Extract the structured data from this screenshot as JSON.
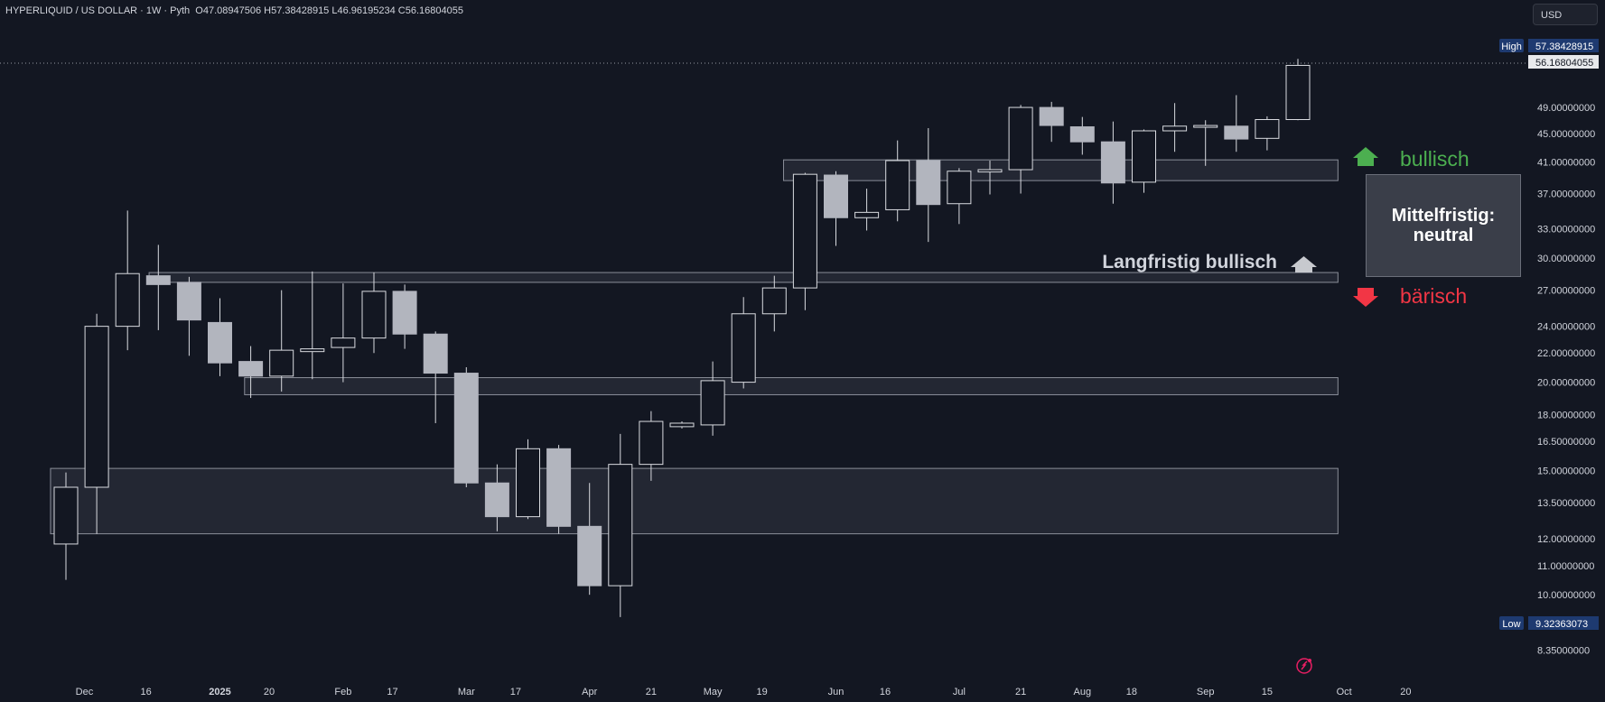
{
  "header": {
    "symbol": "HYPERLIQUID / US DOLLAR · 1W · Pyth",
    "ohlc": "O47.08947506  H57.38428915  L46.96195234  C56.16804055"
  },
  "currency_button": "USD",
  "annotations": {
    "bullish_label": "bullisch",
    "bearish_label": "bärisch",
    "neutral_line1": "Mittelfristig:",
    "neutral_line2": "neutral",
    "longterm_label": "Langfristig bullisch"
  },
  "colors": {
    "background": "#131722",
    "candle_down": "#b2b5be",
    "candle_up_body": "#131722",
    "candle_outline": "#d9dbe0",
    "zone_fill": "#2a2e39",
    "zone_border": "#8a8e99",
    "bullish": "#4caf50",
    "bearish": "#f23645",
    "axis_text": "#d1d4dc"
  },
  "chart_data": {
    "type": "candlestick",
    "timeframe": "1W",
    "y_scale": "log",
    "high_marker": {
      "label": "High",
      "value": "57.38428915"
    },
    "low_marker": {
      "label": "Low",
      "value": "9.32363073"
    },
    "last_price": "56.16804055",
    "y_tick_labels": [
      "49.00000000",
      "45.00000000",
      "41.00000000",
      "37.00000000",
      "33.00000000",
      "30.00000000",
      "27.00000000",
      "24.00000000",
      "22.00000000",
      "20.00000000",
      "18.00000000",
      "16.50000000",
      "15.00000000",
      "13.50000000",
      "12.00000000",
      "11.00000000",
      "10.00000000",
      "8.35000000"
    ],
    "y_tick_values": [
      49,
      45,
      41,
      37,
      33,
      30,
      27,
      24,
      22,
      20,
      18,
      16.5,
      15,
      13.5,
      12,
      11,
      10,
      8.35
    ],
    "x_tick_labels": [
      "Dec",
      "16",
      "2025",
      "20",
      "Feb",
      "17",
      "Mar",
      "17",
      "Apr",
      "21",
      "May",
      "19",
      "Jun",
      "16",
      "Jul",
      "21",
      "Aug",
      "18",
      "Sep",
      "15",
      "Oct",
      "20"
    ],
    "x_tick_positions": [
      0.6,
      2.6,
      5.0,
      6.6,
      9.0,
      10.6,
      13.0,
      14.6,
      17.0,
      19.0,
      21.0,
      22.6,
      25.0,
      26.6,
      29.0,
      31.0,
      33.0,
      34.6,
      37.0,
      39.0,
      41.5,
      43.5
    ],
    "zones": [
      {
        "start": 23.3,
        "end": 41.3,
        "low": 38.6,
        "high": 41.3
      },
      {
        "start": 2.7,
        "end": 41.3,
        "low": 27.7,
        "high": 28.6
      },
      {
        "start": 5.8,
        "end": 41.3,
        "low": 19.2,
        "high": 20.3
      },
      {
        "start": -0.5,
        "end": 41.3,
        "low": 12.2,
        "high": 15.1
      }
    ],
    "candles": [
      {
        "i": 0,
        "o": 11.8,
        "h": 14.9,
        "l": 10.5,
        "c": 14.2
      },
      {
        "i": 1,
        "o": 14.2,
        "h": 25.0,
        "l": 12.2,
        "c": 24.0
      },
      {
        "i": 2,
        "o": 24.0,
        "h": 35.0,
        "l": 22.2,
        "c": 28.5
      },
      {
        "i": 3,
        "o": 28.3,
        "h": 31.3,
        "l": 23.7,
        "c": 27.5
      },
      {
        "i": 4,
        "o": 27.7,
        "h": 28.2,
        "l": 21.8,
        "c": 24.5
      },
      {
        "i": 5,
        "o": 24.3,
        "h": 26.3,
        "l": 20.4,
        "c": 21.3
      },
      {
        "i": 6,
        "o": 21.4,
        "h": 22.5,
        "l": 19.0,
        "c": 20.4
      },
      {
        "i": 7,
        "o": 20.4,
        "h": 27.0,
        "l": 19.4,
        "c": 22.2
      },
      {
        "i": 8,
        "o": 22.1,
        "h": 28.7,
        "l": 20.2,
        "c": 22.3
      },
      {
        "i": 9,
        "o": 22.4,
        "h": 27.6,
        "l": 20.0,
        "c": 23.1
      },
      {
        "i": 10,
        "o": 23.1,
        "h": 28.6,
        "l": 22.0,
        "c": 26.9
      },
      {
        "i": 11,
        "o": 26.9,
        "h": 27.5,
        "l": 22.3,
        "c": 23.4
      },
      {
        "i": 12,
        "o": 23.4,
        "h": 23.6,
        "l": 17.5,
        "c": 20.6
      },
      {
        "i": 13,
        "o": 20.6,
        "h": 21.0,
        "l": 14.2,
        "c": 14.4
      },
      {
        "i": 14,
        "o": 14.4,
        "h": 15.3,
        "l": 12.3,
        "c": 12.9
      },
      {
        "i": 15,
        "o": 12.9,
        "h": 16.6,
        "l": 12.8,
        "c": 16.1
      },
      {
        "i": 16,
        "o": 16.1,
        "h": 16.3,
        "l": 12.2,
        "c": 12.5
      },
      {
        "i": 17,
        "o": 12.5,
        "h": 14.4,
        "l": 10.0,
        "c": 10.3
      },
      {
        "i": 18,
        "o": 10.3,
        "h": 16.9,
        "l": 9.3,
        "c": 15.3
      },
      {
        "i": 19,
        "o": 15.3,
        "h": 18.2,
        "l": 14.5,
        "c": 17.6
      },
      {
        "i": 20,
        "o": 17.3,
        "h": 17.6,
        "l": 17.2,
        "c": 17.5
      },
      {
        "i": 21,
        "o": 17.4,
        "h": 21.4,
        "l": 16.8,
        "c": 20.1
      },
      {
        "i": 22,
        "o": 20.0,
        "h": 26.4,
        "l": 19.6,
        "c": 25.0
      },
      {
        "i": 23,
        "o": 25.0,
        "h": 28.3,
        "l": 23.6,
        "c": 27.2
      },
      {
        "i": 24,
        "o": 27.2,
        "h": 39.6,
        "l": 25.3,
        "c": 39.4
      },
      {
        "i": 25,
        "o": 39.3,
        "h": 39.8,
        "l": 31.2,
        "c": 34.2
      },
      {
        "i": 26,
        "o": 34.2,
        "h": 37.6,
        "l": 32.8,
        "c": 34.8
      },
      {
        "i": 27,
        "o": 35.1,
        "h": 44.0,
        "l": 33.8,
        "c": 41.2
      },
      {
        "i": 28,
        "o": 41.2,
        "h": 45.8,
        "l": 31.6,
        "c": 35.7
      },
      {
        "i": 29,
        "o": 35.8,
        "h": 40.2,
        "l": 33.5,
        "c": 39.8
      },
      {
        "i": 30,
        "o": 39.7,
        "h": 41.2,
        "l": 36.9,
        "c": 40.0
      },
      {
        "i": 31,
        "o": 40.0,
        "h": 49.4,
        "l": 37.0,
        "c": 49.0
      },
      {
        "i": 32,
        "o": 49.0,
        "h": 49.9,
        "l": 43.8,
        "c": 46.2
      },
      {
        "i": 33,
        "o": 46.0,
        "h": 47.5,
        "l": 42.0,
        "c": 43.8
      },
      {
        "i": 34,
        "o": 43.8,
        "h": 46.8,
        "l": 35.8,
        "c": 38.3
      },
      {
        "i": 35,
        "o": 38.4,
        "h": 45.6,
        "l": 37.1,
        "c": 45.4
      },
      {
        "i": 36,
        "o": 45.4,
        "h": 49.7,
        "l": 42.4,
        "c": 46.1
      },
      {
        "i": 37,
        "o": 46.0,
        "h": 47.0,
        "l": 40.5,
        "c": 46.2
      },
      {
        "i": 38,
        "o": 46.1,
        "h": 51.0,
        "l": 42.4,
        "c": 44.2
      },
      {
        "i": 39,
        "o": 44.3,
        "h": 47.6,
        "l": 42.6,
        "c": 47.1
      },
      {
        "i": 40,
        "o": 47.1,
        "h": 57.4,
        "l": 47.0,
        "c": 56.2
      }
    ]
  }
}
